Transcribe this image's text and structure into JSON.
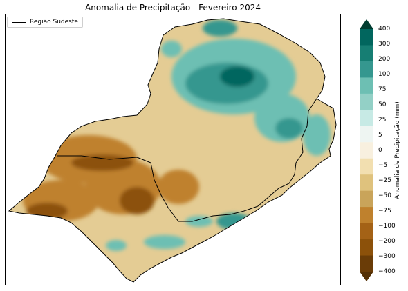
{
  "title": "Anomalia de Precipitação - Fevereiro 2024",
  "legend": {
    "label": "Região Sudeste"
  },
  "colorbar": {
    "label": "Anomalia de Precipitação (mm)",
    "ticks": [
      "400",
      "300",
      "200",
      "100",
      "75",
      "50",
      "25",
      "5",
      "0",
      "−5",
      "−25",
      "−50",
      "−75",
      "−100",
      "−200",
      "−300",
      "−400"
    ],
    "colors": [
      "#013c30",
      "#01665e",
      "#167e73",
      "#35978f",
      "#6dbfb3",
      "#93d0c6",
      "#c7eae5",
      "#eef5f2",
      "#f8f0df",
      "#f2dfb0",
      "#dfc27d",
      "#c9a45a",
      "#bf812d",
      "#a46216",
      "#8c510a",
      "#6a3c07",
      "#543005"
    ]
  },
  "region_colors": {
    "land": "#e4cc94",
    "wet": "#6dbfb3",
    "very_wet": "#35978f",
    "extreme_wet": "#01665e",
    "dry": "#bf812d",
    "very_dry": "#8c510a"
  }
}
